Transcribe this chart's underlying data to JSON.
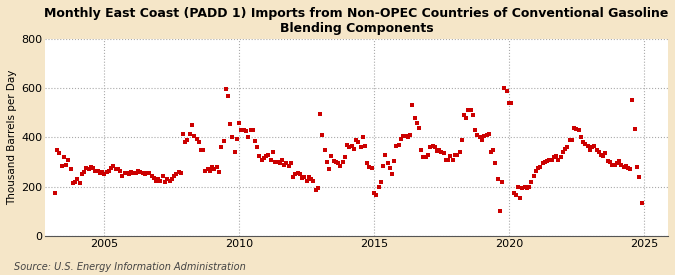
{
  "title": "Monthly East Coast (PADD 1) Imports from Non-OPEC Countries of Conventional Gasoline\nBlending Components",
  "ylabel": "Thousand Barrels per Day",
  "source": "Source: U.S. Energy Information Administration",
  "figure_bg": "#f5e6c8",
  "plot_bg": "#ffffff",
  "marker_color": "#cc0000",
  "ylim": [
    0,
    800
  ],
  "yticks": [
    0,
    200,
    400,
    600,
    800
  ],
  "xlim_start": 2002.8,
  "xlim_end": 2025.9,
  "xticks": [
    2005,
    2010,
    2015,
    2020,
    2025
  ],
  "grid_color": "#aaaaaa",
  "scatter_data": [
    [
      2003.17,
      175
    ],
    [
      2003.25,
      350
    ],
    [
      2003.33,
      335
    ],
    [
      2003.42,
      285
    ],
    [
      2003.5,
      320
    ],
    [
      2003.58,
      290
    ],
    [
      2003.67,
      310
    ],
    [
      2003.75,
      270
    ],
    [
      2003.83,
      215
    ],
    [
      2003.92,
      220
    ],
    [
      2004.0,
      230
    ],
    [
      2004.08,
      215
    ],
    [
      2004.17,
      250
    ],
    [
      2004.25,
      260
    ],
    [
      2004.33,
      275
    ],
    [
      2004.42,
      270
    ],
    [
      2004.5,
      280
    ],
    [
      2004.58,
      275
    ],
    [
      2004.67,
      265
    ],
    [
      2004.75,
      265
    ],
    [
      2004.83,
      255
    ],
    [
      2004.92,
      260
    ],
    [
      2005.0,
      250
    ],
    [
      2005.08,
      260
    ],
    [
      2005.17,
      265
    ],
    [
      2005.25,
      275
    ],
    [
      2005.33,
      285
    ],
    [
      2005.42,
      270
    ],
    [
      2005.5,
      270
    ],
    [
      2005.58,
      265
    ],
    [
      2005.67,
      245
    ],
    [
      2005.75,
      255
    ],
    [
      2005.83,
      255
    ],
    [
      2005.92,
      250
    ],
    [
      2006.0,
      260
    ],
    [
      2006.08,
      255
    ],
    [
      2006.17,
      255
    ],
    [
      2006.25,
      265
    ],
    [
      2006.33,
      260
    ],
    [
      2006.42,
      255
    ],
    [
      2006.5,
      250
    ],
    [
      2006.58,
      255
    ],
    [
      2006.67,
      255
    ],
    [
      2006.75,
      245
    ],
    [
      2006.83,
      235
    ],
    [
      2006.92,
      225
    ],
    [
      2007.0,
      230
    ],
    [
      2007.08,
      225
    ],
    [
      2007.17,
      245
    ],
    [
      2007.25,
      220
    ],
    [
      2007.33,
      230
    ],
    [
      2007.42,
      225
    ],
    [
      2007.5,
      230
    ],
    [
      2007.58,
      245
    ],
    [
      2007.67,
      250
    ],
    [
      2007.75,
      260
    ],
    [
      2007.83,
      255
    ],
    [
      2007.92,
      415
    ],
    [
      2008.0,
      380
    ],
    [
      2008.08,
      390
    ],
    [
      2008.17,
      415
    ],
    [
      2008.25,
      450
    ],
    [
      2008.33,
      405
    ],
    [
      2008.42,
      395
    ],
    [
      2008.5,
      380
    ],
    [
      2008.58,
      350
    ],
    [
      2008.67,
      350
    ],
    [
      2008.75,
      265
    ],
    [
      2008.83,
      270
    ],
    [
      2008.92,
      265
    ],
    [
      2009.0,
      280
    ],
    [
      2009.08,
      270
    ],
    [
      2009.17,
      280
    ],
    [
      2009.25,
      260
    ],
    [
      2009.33,
      360
    ],
    [
      2009.42,
      385
    ],
    [
      2009.5,
      595
    ],
    [
      2009.58,
      570
    ],
    [
      2009.67,
      455
    ],
    [
      2009.75,
      400
    ],
    [
      2009.83,
      340
    ],
    [
      2009.92,
      395
    ],
    [
      2010.0,
      460
    ],
    [
      2010.08,
      430
    ],
    [
      2010.17,
      430
    ],
    [
      2010.25,
      425
    ],
    [
      2010.33,
      400
    ],
    [
      2010.42,
      430
    ],
    [
      2010.5,
      430
    ],
    [
      2010.58,
      385
    ],
    [
      2010.67,
      360
    ],
    [
      2010.75,
      325
    ],
    [
      2010.83,
      310
    ],
    [
      2010.92,
      315
    ],
    [
      2011.0,
      325
    ],
    [
      2011.08,
      330
    ],
    [
      2011.17,
      310
    ],
    [
      2011.25,
      340
    ],
    [
      2011.33,
      300
    ],
    [
      2011.42,
      300
    ],
    [
      2011.5,
      295
    ],
    [
      2011.58,
      310
    ],
    [
      2011.67,
      290
    ],
    [
      2011.75,
      295
    ],
    [
      2011.83,
      285
    ],
    [
      2011.92,
      295
    ],
    [
      2012.0,
      240
    ],
    [
      2012.08,
      250
    ],
    [
      2012.17,
      255
    ],
    [
      2012.25,
      250
    ],
    [
      2012.33,
      235
    ],
    [
      2012.42,
      240
    ],
    [
      2012.5,
      225
    ],
    [
      2012.58,
      240
    ],
    [
      2012.67,
      230
    ],
    [
      2012.75,
      225
    ],
    [
      2012.83,
      185
    ],
    [
      2012.92,
      195
    ],
    [
      2013.0,
      495
    ],
    [
      2013.08,
      410
    ],
    [
      2013.17,
      350
    ],
    [
      2013.25,
      300
    ],
    [
      2013.33,
      270
    ],
    [
      2013.42,
      325
    ],
    [
      2013.5,
      305
    ],
    [
      2013.58,
      300
    ],
    [
      2013.67,
      295
    ],
    [
      2013.75,
      285
    ],
    [
      2013.83,
      300
    ],
    [
      2013.92,
      320
    ],
    [
      2014.0,
      370
    ],
    [
      2014.08,
      360
    ],
    [
      2014.17,
      365
    ],
    [
      2014.25,
      355
    ],
    [
      2014.33,
      390
    ],
    [
      2014.42,
      380
    ],
    [
      2014.5,
      360
    ],
    [
      2014.58,
      400
    ],
    [
      2014.67,
      365
    ],
    [
      2014.75,
      295
    ],
    [
      2014.83,
      280
    ],
    [
      2014.92,
      275
    ],
    [
      2015.0,
      175
    ],
    [
      2015.08,
      165
    ],
    [
      2015.17,
      200
    ],
    [
      2015.25,
      220
    ],
    [
      2015.33,
      285
    ],
    [
      2015.42,
      330
    ],
    [
      2015.5,
      295
    ],
    [
      2015.58,
      275
    ],
    [
      2015.67,
      250
    ],
    [
      2015.75,
      305
    ],
    [
      2015.83,
      365
    ],
    [
      2015.92,
      370
    ],
    [
      2016.0,
      395
    ],
    [
      2016.08,
      405
    ],
    [
      2016.17,
      405
    ],
    [
      2016.25,
      400
    ],
    [
      2016.33,
      410
    ],
    [
      2016.42,
      530
    ],
    [
      2016.5,
      480
    ],
    [
      2016.58,
      460
    ],
    [
      2016.67,
      440
    ],
    [
      2016.75,
      350
    ],
    [
      2016.83,
      320
    ],
    [
      2016.92,
      320
    ],
    [
      2017.0,
      330
    ],
    [
      2017.08,
      360
    ],
    [
      2017.17,
      365
    ],
    [
      2017.25,
      360
    ],
    [
      2017.33,
      345
    ],
    [
      2017.42,
      350
    ],
    [
      2017.5,
      340
    ],
    [
      2017.58,
      335
    ],
    [
      2017.67,
      310
    ],
    [
      2017.75,
      310
    ],
    [
      2017.83,
      325
    ],
    [
      2017.92,
      310
    ],
    [
      2018.0,
      330
    ],
    [
      2018.08,
      330
    ],
    [
      2018.17,
      340
    ],
    [
      2018.25,
      390
    ],
    [
      2018.33,
      490
    ],
    [
      2018.42,
      480
    ],
    [
      2018.5,
      510
    ],
    [
      2018.58,
      510
    ],
    [
      2018.67,
      490
    ],
    [
      2018.75,
      430
    ],
    [
      2018.83,
      410
    ],
    [
      2018.92,
      400
    ],
    [
      2019.0,
      390
    ],
    [
      2019.08,
      405
    ],
    [
      2019.17,
      410
    ],
    [
      2019.25,
      415
    ],
    [
      2019.33,
      340
    ],
    [
      2019.42,
      350
    ],
    [
      2019.5,
      295
    ],
    [
      2019.58,
      230
    ],
    [
      2019.67,
      100
    ],
    [
      2019.75,
      220
    ],
    [
      2019.83,
      600
    ],
    [
      2019.92,
      590
    ],
    [
      2020.0,
      540
    ],
    [
      2020.08,
      540
    ],
    [
      2020.17,
      175
    ],
    [
      2020.25,
      165
    ],
    [
      2020.33,
      200
    ],
    [
      2020.42,
      155
    ],
    [
      2020.5,
      195
    ],
    [
      2020.58,
      200
    ],
    [
      2020.67,
      195
    ],
    [
      2020.75,
      200
    ],
    [
      2020.83,
      220
    ],
    [
      2020.92,
      245
    ],
    [
      2021.0,
      265
    ],
    [
      2021.08,
      275
    ],
    [
      2021.17,
      280
    ],
    [
      2021.25,
      295
    ],
    [
      2021.33,
      300
    ],
    [
      2021.42,
      305
    ],
    [
      2021.5,
      310
    ],
    [
      2021.58,
      310
    ],
    [
      2021.67,
      320
    ],
    [
      2021.75,
      325
    ],
    [
      2021.83,
      310
    ],
    [
      2021.92,
      320
    ],
    [
      2022.0,
      340
    ],
    [
      2022.08,
      355
    ],
    [
      2022.17,
      360
    ],
    [
      2022.25,
      390
    ],
    [
      2022.33,
      390
    ],
    [
      2022.42,
      440
    ],
    [
      2022.5,
      435
    ],
    [
      2022.58,
      430
    ],
    [
      2022.67,
      400
    ],
    [
      2022.75,
      380
    ],
    [
      2022.83,
      375
    ],
    [
      2022.92,
      365
    ],
    [
      2023.0,
      350
    ],
    [
      2023.08,
      360
    ],
    [
      2023.17,
      365
    ],
    [
      2023.25,
      350
    ],
    [
      2023.33,
      340
    ],
    [
      2023.42,
      330
    ],
    [
      2023.5,
      325
    ],
    [
      2023.58,
      335
    ],
    [
      2023.67,
      305
    ],
    [
      2023.75,
      300
    ],
    [
      2023.83,
      290
    ],
    [
      2023.92,
      290
    ],
    [
      2024.0,
      295
    ],
    [
      2024.08,
      305
    ],
    [
      2024.17,
      290
    ],
    [
      2024.25,
      280
    ],
    [
      2024.33,
      285
    ],
    [
      2024.42,
      275
    ],
    [
      2024.5,
      270
    ],
    [
      2024.58,
      550
    ],
    [
      2024.67,
      435
    ],
    [
      2024.75,
      280
    ],
    [
      2024.83,
      240
    ],
    [
      2024.92,
      135
    ]
  ]
}
